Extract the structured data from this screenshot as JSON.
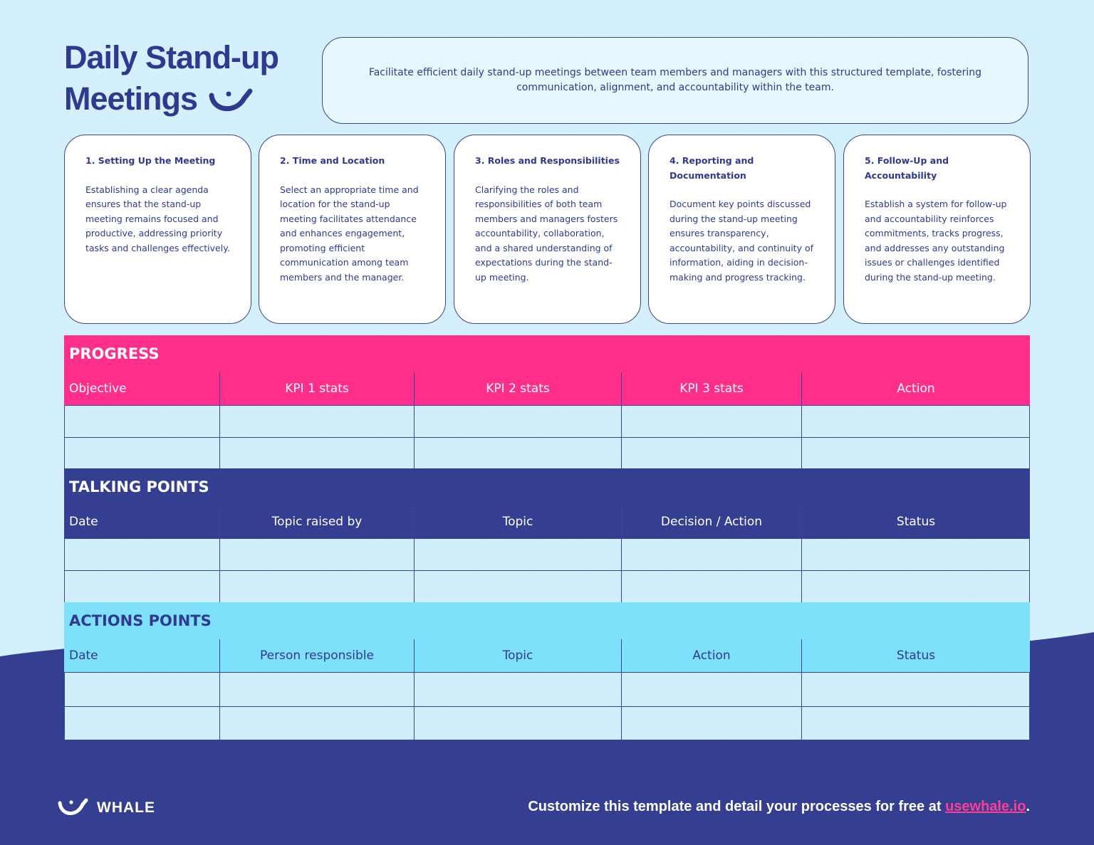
{
  "header": {
    "title_lines": [
      "Daily Stand-up",
      "Meetings"
    ],
    "description": "Facilitate efficient daily stand-up meetings between team members and managers with this structured template, fostering communication, alignment, and accountability within the team."
  },
  "cards": [
    {
      "title": "1. Setting Up the Meeting",
      "body": "Establishing a clear agenda ensures that the stand-up meeting remains focused and productive, addressing priority tasks and challenges effectively."
    },
    {
      "title": "2. Time and Location",
      "body": "Select an appropriate time and location for the stand-up meeting facilitates attendance and enhances engagement, promoting efficient communication among team members and the manager."
    },
    {
      "title": "3. Roles and Responsibilities",
      "body": "Clarifying the roles and responsibilities of both team members and managers fosters accountability, collaboration, and a shared understanding of expectations during the stand-up meeting."
    },
    {
      "title": "4. Reporting and Documentation",
      "body": "Document key points discussed during the stand-up meeting ensures transparency, accountability, and continuity of information, aiding in decision-making and progress tracking."
    },
    {
      "title": "5. Follow-Up and Accountability",
      "body": "Establish a system for follow-up and accountability reinforces commitments, tracks progress, and addresses any outstanding issues or challenges identified during the stand-up meeting."
    }
  ],
  "tables": [
    {
      "title": "PROGRESS",
      "headers": [
        "Objective",
        "KPI 1 stats",
        "KPI 2 stats",
        "KPI 3 stats",
        "Action"
      ]
    },
    {
      "title": "TALKING POINTS",
      "headers": [
        "Date",
        "Topic raised by",
        "Topic",
        "Decision / Action",
        "Status"
      ]
    },
    {
      "title": "ACTIONS POINTS",
      "headers": [
        "Date",
        "Person responsible",
        "Topic",
        "Action",
        "Status"
      ]
    }
  ],
  "footer": {
    "brand": "WHALE",
    "text": "Customize this template and detail your processes for free at",
    "link": "usewhale.io",
    "end": "."
  }
}
